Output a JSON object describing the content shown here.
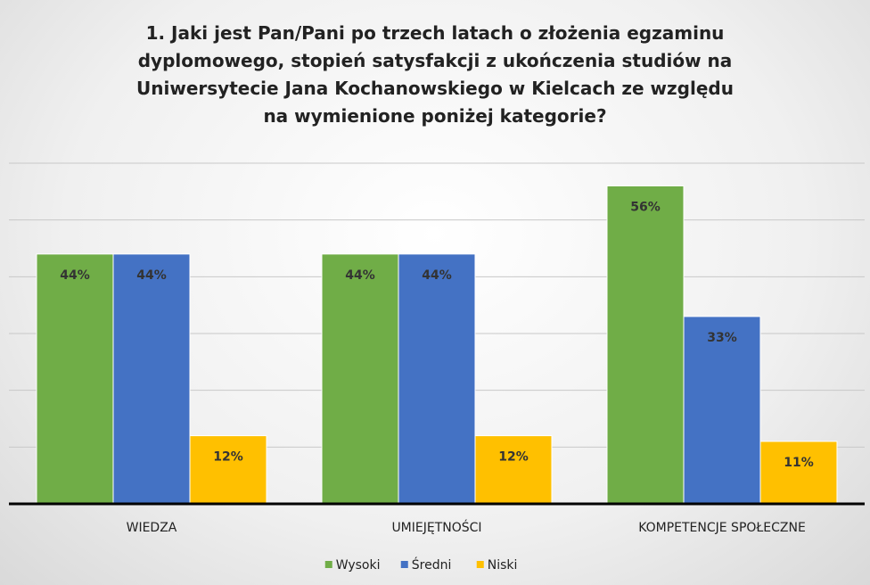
{
  "chart_data": {
    "type": "bar",
    "title": "1. Jaki jest Pan/Pani po trzech latach o złożenia egzaminu dyplomowego, stopień satysfakcji z ukończenia studiów na Uniwersytecie Jana Kochanowskiego w Kielcach ze względu na wymienione poniżej kategorie?",
    "categories": [
      "WIEDZA",
      "UMIEJĘTNOŚCI",
      "KOMPETENCJE SPOŁECZNE"
    ],
    "series": [
      {
        "name": "Wysoki",
        "color": "#70ad47",
        "values": [
          44,
          44,
          56
        ],
        "value_labels": [
          "44%",
          "44%",
          "56%"
        ]
      },
      {
        "name": "Średni",
        "color": "#4472c4",
        "values": [
          44,
          44,
          33
        ],
        "value_labels": [
          "44%",
          "44%",
          "33%"
        ]
      },
      {
        "name": "Niski",
        "color": "#ffc000",
        "values": [
          12,
          12,
          11
        ],
        "value_labels": [
          "12%",
          "12%",
          "11%"
        ]
      }
    ],
    "ylim": [
      0,
      60
    ],
    "yticks": [
      0,
      10,
      20,
      30,
      40,
      50,
      60
    ],
    "grid": true,
    "legend": "bottom"
  }
}
